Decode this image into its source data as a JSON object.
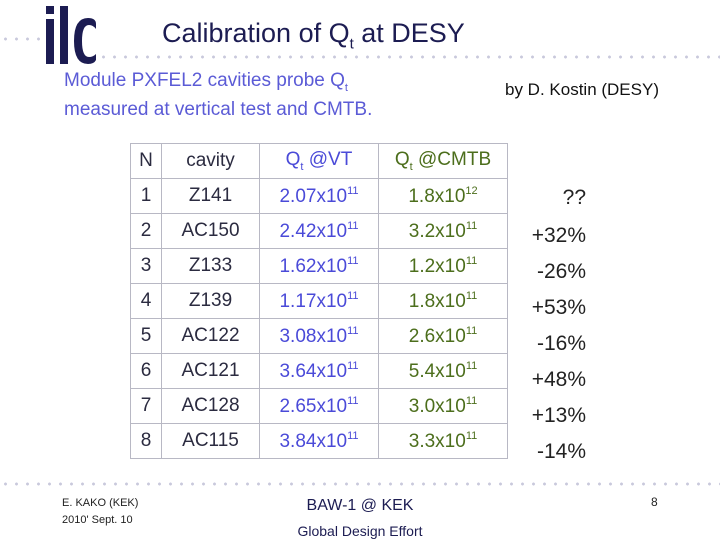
{
  "slide": {
    "logo": "ilc",
    "title_main": "Calibration of  Q",
    "title_sub": "t",
    "title_tail": "  at DESY",
    "subtitle_line1": "Module PXFEL2 cavities probe Q",
    "subtitle_sub": "t",
    "subtitle_line2": "measured at vertical test and CMTB.",
    "author": "by D. Kostin (DESY)"
  },
  "table": {
    "headers": {
      "n": "N",
      "cavity": "cavity",
      "vt_q": "Q",
      "vt_sub": "t",
      "vt_tail": " @VT",
      "cm_q": "Q",
      "cm_sub": "t",
      "cm_tail": " @CMTB"
    },
    "rows": [
      {
        "n": "1",
        "cavity": "Z141",
        "vt_mant": "2.07x10",
        "vt_exp": "11",
        "cm_mant": "1.8x10",
        "cm_exp": "12",
        "change": "??"
      },
      {
        "n": "2",
        "cavity": "AC150",
        "vt_mant": "2.42x10",
        "vt_exp": "11",
        "cm_mant": "3.2x10",
        "cm_exp": "11",
        "change": "+32%"
      },
      {
        "n": "3",
        "cavity": "Z133",
        "vt_mant": "1.62x10",
        "vt_exp": "11",
        "cm_mant": "1.2x10",
        "cm_exp": "11",
        "change": "-26%"
      },
      {
        "n": "4",
        "cavity": "Z139",
        "vt_mant": "1.17x10",
        "vt_exp": "11",
        "cm_mant": "1.8x10",
        "cm_exp": "11",
        "change": "+53%"
      },
      {
        "n": "5",
        "cavity": "AC122",
        "vt_mant": "3.08x10",
        "vt_exp": "11",
        "cm_mant": "2.6x10",
        "cm_exp": "11",
        "change": "-16%"
      },
      {
        "n": "6",
        "cavity": "AC121",
        "vt_mant": "3.64x10",
        "vt_exp": "11",
        "cm_mant": "5.4x10",
        "cm_exp": "11",
        "change": "+48%"
      },
      {
        "n": "7",
        "cavity": "AC128",
        "vt_mant": "2.65x10",
        "vt_exp": "11",
        "cm_mant": "3.0x10",
        "cm_exp": "11",
        "change": "+13%"
      },
      {
        "n": "8",
        "cavity": "AC115",
        "vt_mant": "3.84x10",
        "vt_exp": "11",
        "cm_mant": "3.3x10",
        "cm_exp": "11",
        "change": "-14%"
      }
    ]
  },
  "footer": {
    "presenter": "E. KAKO (KEK)",
    "date": "2010' Sept. 10",
    "event": "BAW-1 @ KEK",
    "org": "Global Design Effort",
    "page": "8"
  },
  "colors": {
    "title": "#1c1c52",
    "subtitle": "#5b5bd6",
    "vt_values": "#4a4ad8",
    "cmtb_values": "#4c6e1c",
    "table_border": "#b8b8c4",
    "dots": "#c9c9dc"
  }
}
